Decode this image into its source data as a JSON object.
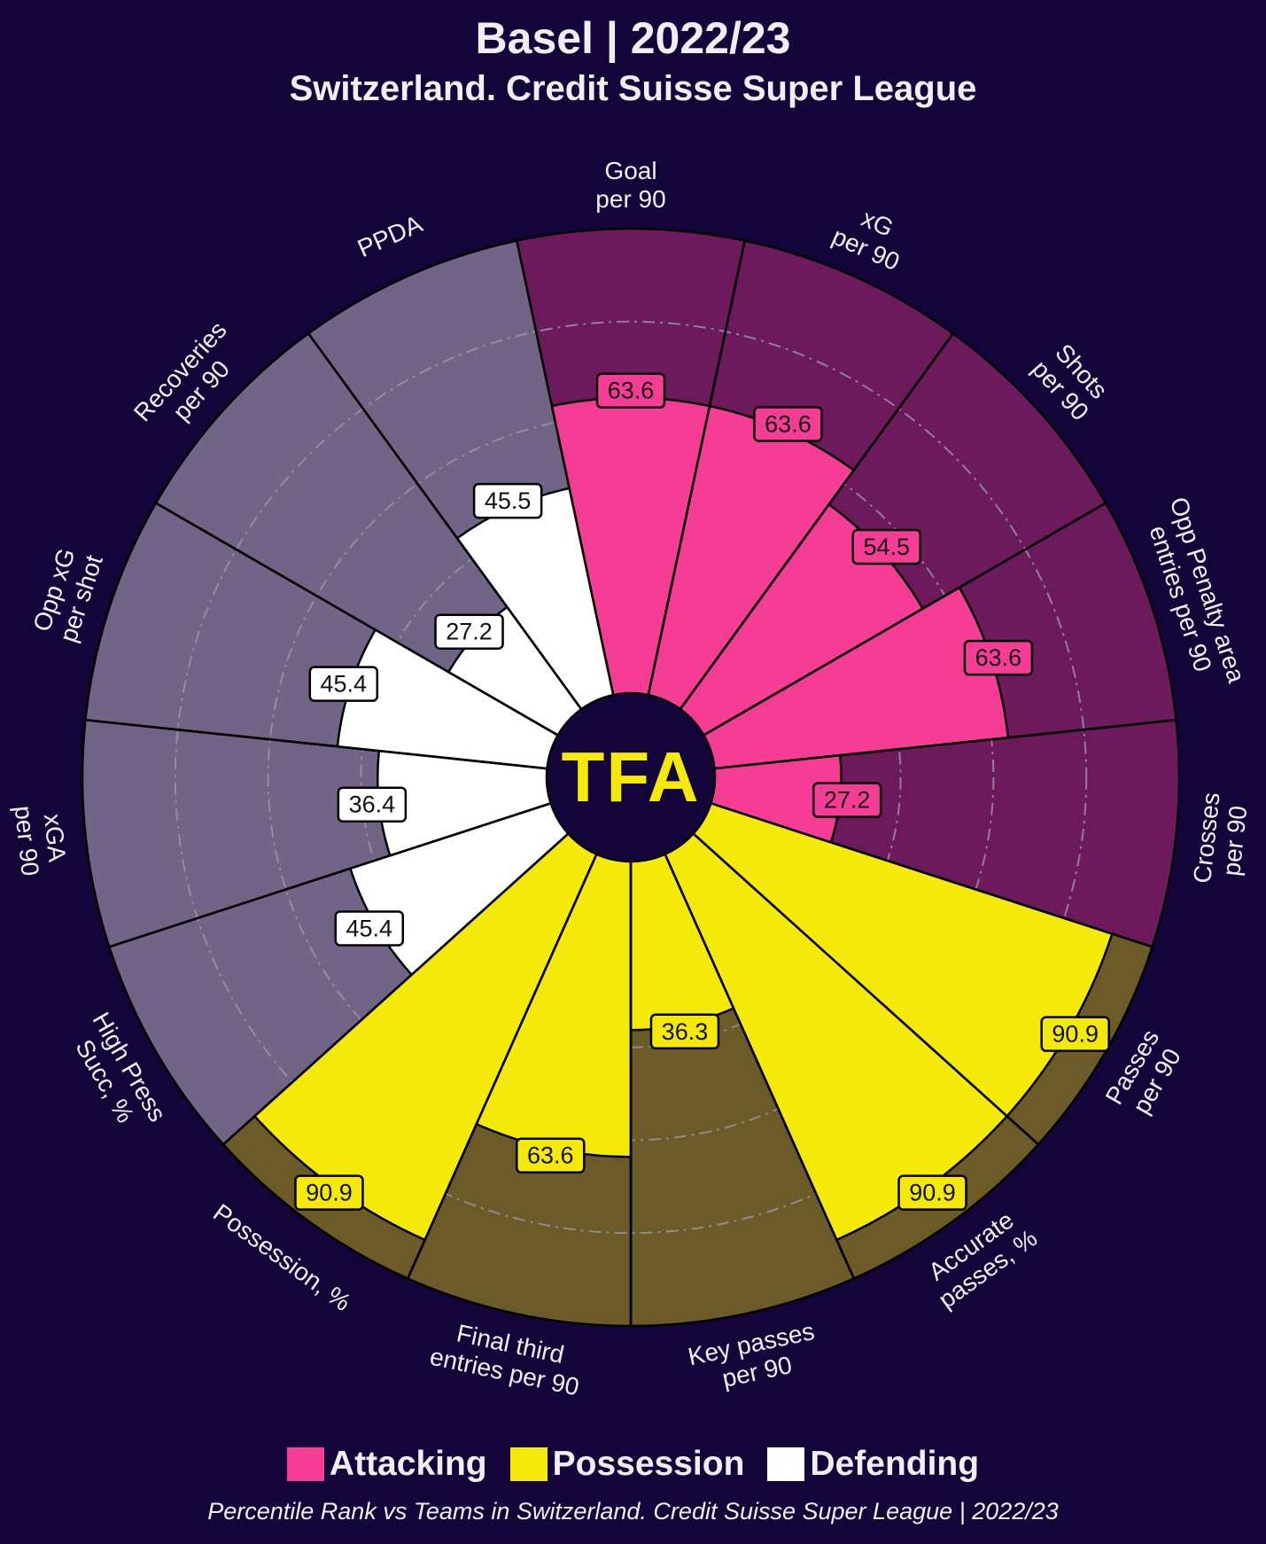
{
  "title": "Basel | 2022/23",
  "subtitle": "Switzerland. Credit Suisse Super League",
  "logo_text": "TFA",
  "footnote": "Percentile Rank vs Teams in Switzerland. Credit Suisse Super League | 2022/23",
  "colors": {
    "background": "#13043a",
    "attacking": "#f53d96",
    "attacking_bg": "#6d1a5c",
    "possession": "#f5e90a",
    "possession_bg": "#6c5a28",
    "defending": "#ffffff",
    "defending_bg": "#716486",
    "logo": "#f5e90a"
  },
  "legend": [
    {
      "label": "Attacking",
      "category": "attacking"
    },
    {
      "label": "Possession",
      "category": "possession"
    },
    {
      "label": "Defending",
      "category": "defending"
    }
  ],
  "chart_data": {
    "type": "pie",
    "subtype": "pizza-radial-bar",
    "title": "Basel | 2022/23",
    "range": [
      0,
      100
    ],
    "gridlines": [
      20,
      40,
      60,
      80
    ],
    "metrics": [
      {
        "label": [
          "Goal",
          "per 90"
        ],
        "value": 63.6,
        "category": "attacking"
      },
      {
        "label": [
          "xG",
          "per 90"
        ],
        "value": 63.6,
        "category": "attacking"
      },
      {
        "label": [
          "Shots",
          "per 90"
        ],
        "value": 54.5,
        "category": "attacking"
      },
      {
        "label": [
          "Opp Penalty area",
          "entries per 90"
        ],
        "value": 63.6,
        "category": "attacking"
      },
      {
        "label": [
          "Crosses",
          "per 90"
        ],
        "value": 27.2,
        "category": "attacking"
      },
      {
        "label": [
          "Passes",
          "per 90"
        ],
        "value": 90.9,
        "category": "possession"
      },
      {
        "label": [
          "Accurate",
          "passes, %"
        ],
        "value": 90.9,
        "category": "possession"
      },
      {
        "label": [
          "Key passes",
          "per 90"
        ],
        "value": 36.3,
        "category": "possession"
      },
      {
        "label": [
          "Final third",
          "entries per 90"
        ],
        "value": 63.6,
        "category": "possession"
      },
      {
        "label": [
          "Possession, %"
        ],
        "value": 90.9,
        "category": "possession"
      },
      {
        "label": [
          "High Press",
          "Succ, %"
        ],
        "value": 45.4,
        "category": "defending"
      },
      {
        "label": [
          "xGA",
          "per 90"
        ],
        "value": 36.4,
        "category": "defending"
      },
      {
        "label": [
          "Opp xG",
          "per shot"
        ],
        "value": 45.4,
        "category": "defending"
      },
      {
        "label": [
          "Recoveries",
          "per 90"
        ],
        "value": 27.2,
        "category": "defending"
      },
      {
        "label": [
          "PPDA"
        ],
        "value": 45.5,
        "category": "defending"
      }
    ]
  }
}
